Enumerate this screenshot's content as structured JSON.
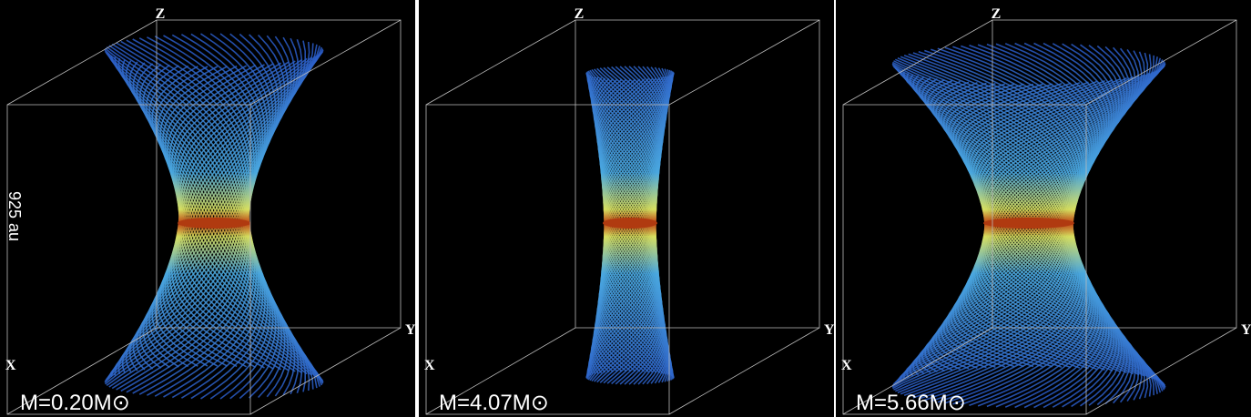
{
  "panels": [
    {
      "axes": {
        "z": "Z",
        "x": "X",
        "y": "Y"
      },
      "mass": "M=0.20M⊙"
    },
    {
      "axes": {
        "z": "Z",
        "x": "X",
        "y": "Y"
      },
      "mass": "M=4.07M⊙"
    },
    {
      "axes": {
        "z": "Z",
        "x": "X",
        "y": "Y"
      },
      "mass": "M=5.66M⊙"
    }
  ],
  "scale": "925 au"
}
